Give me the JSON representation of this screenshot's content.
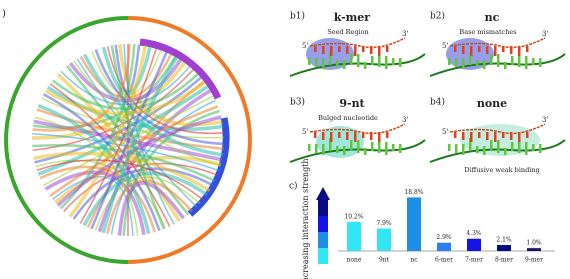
{
  "panel_a_label": ")",
  "diagrams": [
    {
      "label": "b1)",
      "title": "k-mer",
      "annotation": "Seed Region",
      "five_prime": "5'",
      "three_prime": "3'"
    },
    {
      "label": "b2)",
      "title": "nc",
      "annotation": "Base mismatches",
      "five_prime": "5'",
      "three_prime": "3'"
    },
    {
      "label": "b3)",
      "title": "9-nt",
      "annotation": "Bulged nucleotide",
      "five_prime": "5'",
      "three_prime": "3'"
    },
    {
      "label": "b4)",
      "title": "none",
      "annotation": "Diffusive weak binding",
      "five_prime": "5'",
      "three_prime": "3'"
    }
  ],
  "chart_data": {
    "type": "bar",
    "panel_label": "c)",
    "y_label": "Increasing interaction strength",
    "categories": [
      "none",
      "9nt",
      "nc",
      "6-mer",
      "7-mer",
      "8-mer",
      "9-mer"
    ],
    "values": [
      10.2,
      7.9,
      18.8,
      2.9,
      4.3,
      2.1,
      1.0
    ],
    "value_labels": [
      "10.2%",
      "7.9%",
      "18.8%",
      "2.9%",
      "4.3%",
      "2.1%",
      "1.0%"
    ],
    "colors": [
      "#33e6f5",
      "#33e6f5",
      "#1e8fe6",
      "#2a7ff0",
      "#1414e6",
      "#0a0a82",
      "#14146a"
    ]
  }
}
